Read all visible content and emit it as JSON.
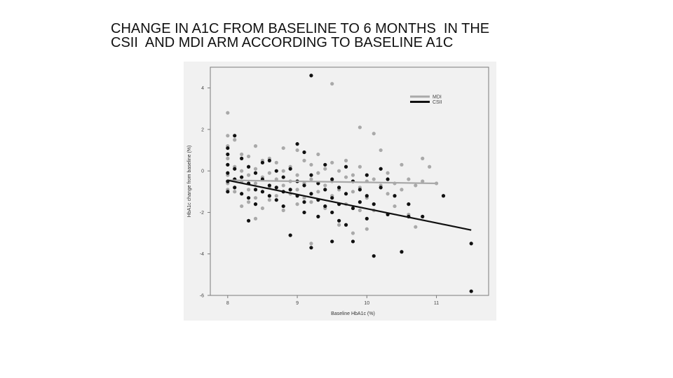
{
  "slide": {
    "title_lines": [
      "CHANGE IN A1C FROM BASELINE TO 6 MONTHS  IN THE",
      "CSII  AND MDI ARM ACCORDING TO BASELINE A1C"
    ]
  },
  "chart_data": {
    "type": "scatter",
    "title": "",
    "xlabel": "Baseline HbA1c (%)",
    "ylabel": "HbA1c change from baseline (%)",
    "xlim": [
      7.75,
      11.75
    ],
    "ylim": [
      -6.0,
      5.0
    ],
    "xticks": [
      8,
      9,
      10,
      11
    ],
    "yticks": [
      -6,
      -4,
      -2,
      0,
      2,
      4
    ],
    "legend_position": "top-right",
    "series": [
      {
        "name": "MDI",
        "color": "#a9a9a9",
        "points": [
          [
            8.0,
            2.8
          ],
          [
            8.0,
            1.7
          ],
          [
            8.0,
            1.2
          ],
          [
            8.0,
            0.6
          ],
          [
            8.0,
            0.3
          ],
          [
            8.0,
            -0.2
          ],
          [
            8.0,
            -0.6
          ],
          [
            8.0,
            -0.9
          ],
          [
            8.1,
            1.5
          ],
          [
            8.1,
            0.2
          ],
          [
            8.1,
            -0.4
          ],
          [
            8.1,
            -1.0
          ],
          [
            8.2,
            0.8
          ],
          [
            8.2,
            0.0
          ],
          [
            8.2,
            -0.5
          ],
          [
            8.2,
            -1.7
          ],
          [
            8.3,
            0.7
          ],
          [
            8.3,
            -0.2
          ],
          [
            8.3,
            -0.9
          ],
          [
            8.3,
            -1.5
          ],
          [
            8.4,
            1.2
          ],
          [
            8.4,
            0.1
          ],
          [
            8.4,
            -0.6
          ],
          [
            8.4,
            -1.3
          ],
          [
            8.4,
            -2.3
          ],
          [
            8.5,
            0.5
          ],
          [
            8.5,
            -0.3
          ],
          [
            8.5,
            -1.0
          ],
          [
            8.5,
            -1.8
          ],
          [
            8.6,
            0.6
          ],
          [
            8.6,
            -0.1
          ],
          [
            8.6,
            -0.8
          ],
          [
            8.6,
            -1.4
          ],
          [
            8.7,
            0.4
          ],
          [
            8.7,
            -0.4
          ],
          [
            8.7,
            -1.2
          ],
          [
            8.8,
            1.1
          ],
          [
            8.8,
            0.0
          ],
          [
            8.8,
            -0.7
          ],
          [
            8.8,
            -1.9
          ],
          [
            8.9,
            0.2
          ],
          [
            8.9,
            -0.5
          ],
          [
            8.9,
            -1.1
          ],
          [
            8.9,
            -3.1
          ],
          [
            9.0,
            1.0
          ],
          [
            9.0,
            -0.2
          ],
          [
            9.0,
            -0.9
          ],
          [
            9.0,
            -1.6
          ],
          [
            9.1,
            0.5
          ],
          [
            9.1,
            -0.6
          ],
          [
            9.1,
            -1.3
          ],
          [
            9.2,
            0.3
          ],
          [
            9.2,
            -0.4
          ],
          [
            9.2,
            -1.5
          ],
          [
            9.2,
            -3.5
          ],
          [
            9.3,
            0.8
          ],
          [
            9.3,
            -0.1
          ],
          [
            9.3,
            -1.0
          ],
          [
            9.4,
            0.1
          ],
          [
            9.4,
            -0.7
          ],
          [
            9.4,
            -1.8
          ],
          [
            9.5,
            4.2
          ],
          [
            9.5,
            0.4
          ],
          [
            9.5,
            -0.5
          ],
          [
            9.5,
            -1.2
          ],
          [
            9.6,
            0.0
          ],
          [
            9.6,
            -0.9
          ],
          [
            9.6,
            -2.6
          ],
          [
            9.7,
            0.5
          ],
          [
            9.7,
            -0.3
          ],
          [
            9.7,
            -1.6
          ],
          [
            9.8,
            -0.2
          ],
          [
            9.8,
            -1.0
          ],
          [
            9.8,
            -3.0
          ],
          [
            9.9,
            2.1
          ],
          [
            9.9,
            0.2
          ],
          [
            9.9,
            -0.8
          ],
          [
            9.9,
            -1.9
          ],
          [
            10.0,
            -0.5
          ],
          [
            10.0,
            -1.3
          ],
          [
            10.0,
            -2.8
          ],
          [
            10.1,
            1.8
          ],
          [
            10.1,
            -0.4
          ],
          [
            10.1,
            -1.9
          ],
          [
            10.2,
            1.0
          ],
          [
            10.2,
            0.1
          ],
          [
            10.2,
            -0.7
          ],
          [
            10.3,
            -0.1
          ],
          [
            10.3,
            -1.1
          ],
          [
            10.4,
            -0.6
          ],
          [
            10.4,
            -1.7
          ],
          [
            10.5,
            0.3
          ],
          [
            10.5,
            -0.9
          ],
          [
            10.6,
            -0.4
          ],
          [
            10.6,
            -2.1
          ],
          [
            10.7,
            -0.7
          ],
          [
            10.7,
            -2.7
          ],
          [
            10.8,
            0.6
          ],
          [
            10.8,
            -0.5
          ],
          [
            10.9,
            0.2
          ],
          [
            11.0,
            -0.6
          ]
        ],
        "fit": [
          [
            8.0,
            -0.45
          ],
          [
            11.0,
            -0.6
          ]
        ]
      },
      {
        "name": "CSII",
        "color": "#111111",
        "points": [
          [
            8.0,
            1.1
          ],
          [
            8.0,
            0.8
          ],
          [
            8.0,
            0.3
          ],
          [
            8.0,
            -0.1
          ],
          [
            8.0,
            -0.5
          ],
          [
            8.0,
            -1.0
          ],
          [
            8.1,
            1.7
          ],
          [
            8.1,
            0.1
          ],
          [
            8.1,
            -0.4
          ],
          [
            8.1,
            -0.8
          ],
          [
            8.2,
            0.6
          ],
          [
            8.2,
            -0.3
          ],
          [
            8.2,
            -1.1
          ],
          [
            8.3,
            0.2
          ],
          [
            8.3,
            -0.6
          ],
          [
            8.3,
            -1.3
          ],
          [
            8.3,
            -2.4
          ],
          [
            8.4,
            -0.1
          ],
          [
            8.4,
            -0.9
          ],
          [
            8.4,
            -1.6
          ],
          [
            8.5,
            0.4
          ],
          [
            8.5,
            -0.4
          ],
          [
            8.5,
            -1.0
          ],
          [
            8.6,
            0.5
          ],
          [
            8.6,
            -0.7
          ],
          [
            8.6,
            -1.2
          ],
          [
            8.7,
            0.0
          ],
          [
            8.7,
            -0.8
          ],
          [
            8.7,
            -1.4
          ],
          [
            8.8,
            -0.3
          ],
          [
            8.8,
            -1.0
          ],
          [
            8.8,
            -1.7
          ],
          [
            8.9,
            0.1
          ],
          [
            8.9,
            -0.9
          ],
          [
            8.9,
            -3.1
          ],
          [
            9.0,
            1.3
          ],
          [
            9.0,
            -0.5
          ],
          [
            9.0,
            -1.2
          ],
          [
            9.1,
            0.9
          ],
          [
            9.1,
            -0.7
          ],
          [
            9.1,
            -1.5
          ],
          [
            9.1,
            -2.0
          ],
          [
            9.2,
            4.6
          ],
          [
            9.2,
            -0.2
          ],
          [
            9.2,
            -1.1
          ],
          [
            9.2,
            -3.7
          ],
          [
            9.3,
            -0.6
          ],
          [
            9.3,
            -1.4
          ],
          [
            9.3,
            -2.2
          ],
          [
            9.4,
            0.3
          ],
          [
            9.4,
            -0.9
          ],
          [
            9.4,
            -1.7
          ],
          [
            9.5,
            -0.4
          ],
          [
            9.5,
            -1.3
          ],
          [
            9.5,
            -2.0
          ],
          [
            9.5,
            -3.4
          ],
          [
            9.6,
            -0.8
          ],
          [
            9.6,
            -1.6
          ],
          [
            9.6,
            -2.4
          ],
          [
            9.7,
            0.2
          ],
          [
            9.7,
            -1.1
          ],
          [
            9.7,
            -2.6
          ],
          [
            9.8,
            -0.5
          ],
          [
            9.8,
            -1.8
          ],
          [
            9.8,
            -3.4
          ],
          [
            9.9,
            -0.9
          ],
          [
            9.9,
            -1.5
          ],
          [
            10.0,
            -0.2
          ],
          [
            10.0,
            -1.2
          ],
          [
            10.0,
            -2.3
          ],
          [
            10.1,
            -1.6
          ],
          [
            10.1,
            -4.1
          ],
          [
            10.2,
            0.1
          ],
          [
            10.2,
            -0.8
          ],
          [
            10.3,
            -0.4
          ],
          [
            10.3,
            -2.1
          ],
          [
            10.4,
            -1.2
          ],
          [
            10.5,
            -3.9
          ],
          [
            10.6,
            -1.6
          ],
          [
            10.6,
            -2.2
          ],
          [
            10.8,
            -2.2
          ],
          [
            11.1,
            -1.2
          ],
          [
            11.5,
            -3.5
          ],
          [
            11.5,
            -5.8
          ]
        ],
        "fit": [
          [
            8.0,
            -0.45
          ],
          [
            11.5,
            -2.85
          ]
        ]
      }
    ]
  }
}
